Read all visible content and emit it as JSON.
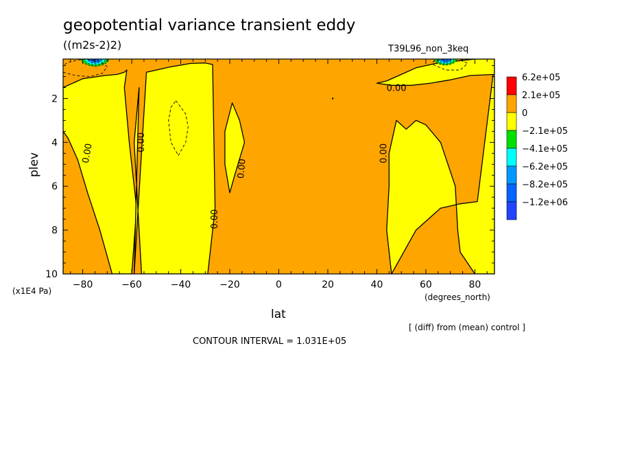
{
  "title": "geopotential variance transient eddy",
  "units": "((m2s-2)2)",
  "run_label": "T39L96_non_3keq",
  "x_axis": {
    "label": "lat",
    "units": "(degrees_north)"
  },
  "y_axis": {
    "label": "plev",
    "units": "(x1E4 Pa)"
  },
  "diff_note": "[ (diff) from (mean) control ]",
  "contour_interval": "CONTOUR INTERVAL = 1.031E+05",
  "colors": {
    "background_fill": "#ffa500",
    "negative_fill": "#ffff00",
    "positive_fill": "#ff0000",
    "line": "#000000"
  },
  "chart_data": {
    "type": "heatmap",
    "title": "geopotential variance transient eddy",
    "xlabel": "lat",
    "ylabel": "plev",
    "xlim": [
      -88,
      88
    ],
    "ylim": [
      0.2,
      10
    ],
    "y_inverted": true,
    "x_ticks": [
      -80,
      -60,
      -40,
      -20,
      0,
      20,
      40,
      60,
      80
    ],
    "x_tick_labels": [
      "−80",
      "−60",
      "−40",
      "−20",
      "0",
      "20",
      "40",
      "60",
      "80"
    ],
    "y_ticks": [
      2,
      4,
      6,
      8,
      10
    ],
    "y_tick_labels": [
      "2",
      "4",
      "6",
      "8",
      "10"
    ],
    "contour_interval": 103100,
    "contour_labels": [
      {
        "text": "0.00",
        "lat": -78,
        "plev": 4.5,
        "rotate": -80
      },
      {
        "text": "0.00",
        "lat": -56,
        "plev": 4.0,
        "rotate": -90
      },
      {
        "text": "0.00",
        "lat": -26,
        "plev": 7.5,
        "rotate": -90
      },
      {
        "text": "0.00",
        "lat": -15,
        "plev": 5.2,
        "rotate": -85
      },
      {
        "text": "0.00",
        "lat": 43,
        "plev": 4.5,
        "rotate": -90
      },
      {
        "text": "0.00",
        "lat": 48,
        "plev": 1.55,
        "rotate": 0
      }
    ],
    "negative_regions": [
      {
        "name": "sh-outer",
        "lat": [
          -88,
          -88,
          -85,
          -83,
          -80,
          -77,
          -74,
          -71,
          -66,
          -63,
          -62,
          -63,
          -61,
          -58,
          -60,
          -68,
          -73,
          -78,
          -82,
          -86,
          -88
        ],
        "plev": [
          10,
          1.5,
          1.35,
          1.25,
          1.1,
          1.05,
          1.0,
          0.95,
          0.9,
          0.8,
          0.7,
          1.5,
          4,
          7,
          10,
          10,
          8,
          6.3,
          4.8,
          3.8,
          3.5
        ]
      },
      {
        "name": "sh-subtropics",
        "lat": [
          -59,
          -54,
          -44,
          -36,
          -30,
          -27,
          -26,
          -29,
          -56,
          -59,
          -57
        ],
        "plev": [
          10,
          0.8,
          0.55,
          0.4,
          0.38,
          0.45,
          7.0,
          10,
          10,
          4,
          1.5
        ]
      },
      {
        "name": "equatorial-tongue",
        "lat": [
          -20,
          -18,
          -14,
          -16,
          -19,
          -22,
          -22
        ],
        "plev": [
          6.3,
          5.5,
          4,
          3,
          2.2,
          3.5,
          5
        ]
      },
      {
        "name": "nh-north",
        "lat": [
          46,
          56,
          66,
          74,
          81,
          88,
          88,
          80,
          74,
          73,
          72,
          66,
          60,
          56,
          52,
          48,
          45,
          45,
          44
        ],
        "plev": [
          10,
          8,
          7,
          6.8,
          6.7,
          0.4,
          10,
          10,
          9,
          8,
          6,
          4,
          3.2,
          3,
          3.4,
          3.0,
          4.5,
          6,
          8
        ]
      },
      {
        "name": "nh-polar-cap",
        "lat": [
          40,
          46,
          54,
          62,
          70,
          78,
          88,
          88,
          80,
          72,
          64,
          56,
          50,
          44
        ],
        "plev": [
          1.3,
          1.4,
          1.4,
          1.3,
          1.15,
          0.95,
          0.9,
          0.2,
          0.2,
          0.3,
          0.4,
          0.6,
          0.9,
          1.2
        ]
      }
    ],
    "dashed_contours": [
      {
        "name": "sh-subtropic-min",
        "lat": [
          -42,
          -38,
          -37,
          -38,
          -41,
          -44,
          -45,
          -44
        ],
        "plev": [
          2.1,
          2.7,
          3.3,
          4.0,
          4.6,
          4.0,
          3.0,
          2.4
        ]
      },
      {
        "name": "sh-polar-min",
        "lat": [
          -88,
          -83,
          -77,
          -72,
          -70,
          -73,
          -80,
          -86,
          -88
        ],
        "plev": [
          0.8,
          0.95,
          1.0,
          0.85,
          0.55,
          0.3,
          0.2,
          0.35,
          0.5
        ]
      },
      {
        "name": "nh-polar-min",
        "lat": [
          63,
          68,
          74,
          77,
          74,
          68,
          63
        ],
        "plev": [
          0.45,
          0.7,
          0.7,
          0.4,
          0.2,
          0.2,
          0.3
        ]
      }
    ],
    "minimum_lobes": [
      {
        "name": "sh-top",
        "lat": -75,
        "plev": 0.35,
        "half_width": 6,
        "half_depth": 0.3
      },
      {
        "name": "nh-top",
        "lat": 68,
        "plev": 0.35,
        "half_width": 5,
        "half_depth": 0.25
      }
    ],
    "legend": {
      "placement": "right",
      "entries": [
        {
          "label": "6.2e+05",
          "color": "#ff0000"
        },
        {
          "label": "2.1e+05",
          "color": "#ffa500"
        },
        {
          "label": "0",
          "color": "#ffff00"
        },
        {
          "label": "−2.1e+05",
          "color": "#00e000"
        },
        {
          "label": "−4.1e+05",
          "color": "#00ffff"
        },
        {
          "label": "−6.2e+05",
          "color": "#0099ff"
        },
        {
          "label": "−8.2e+05",
          "color": "#0066ff"
        },
        {
          "label": "−1.2e+06",
          "color": "#2244ff"
        }
      ]
    }
  }
}
